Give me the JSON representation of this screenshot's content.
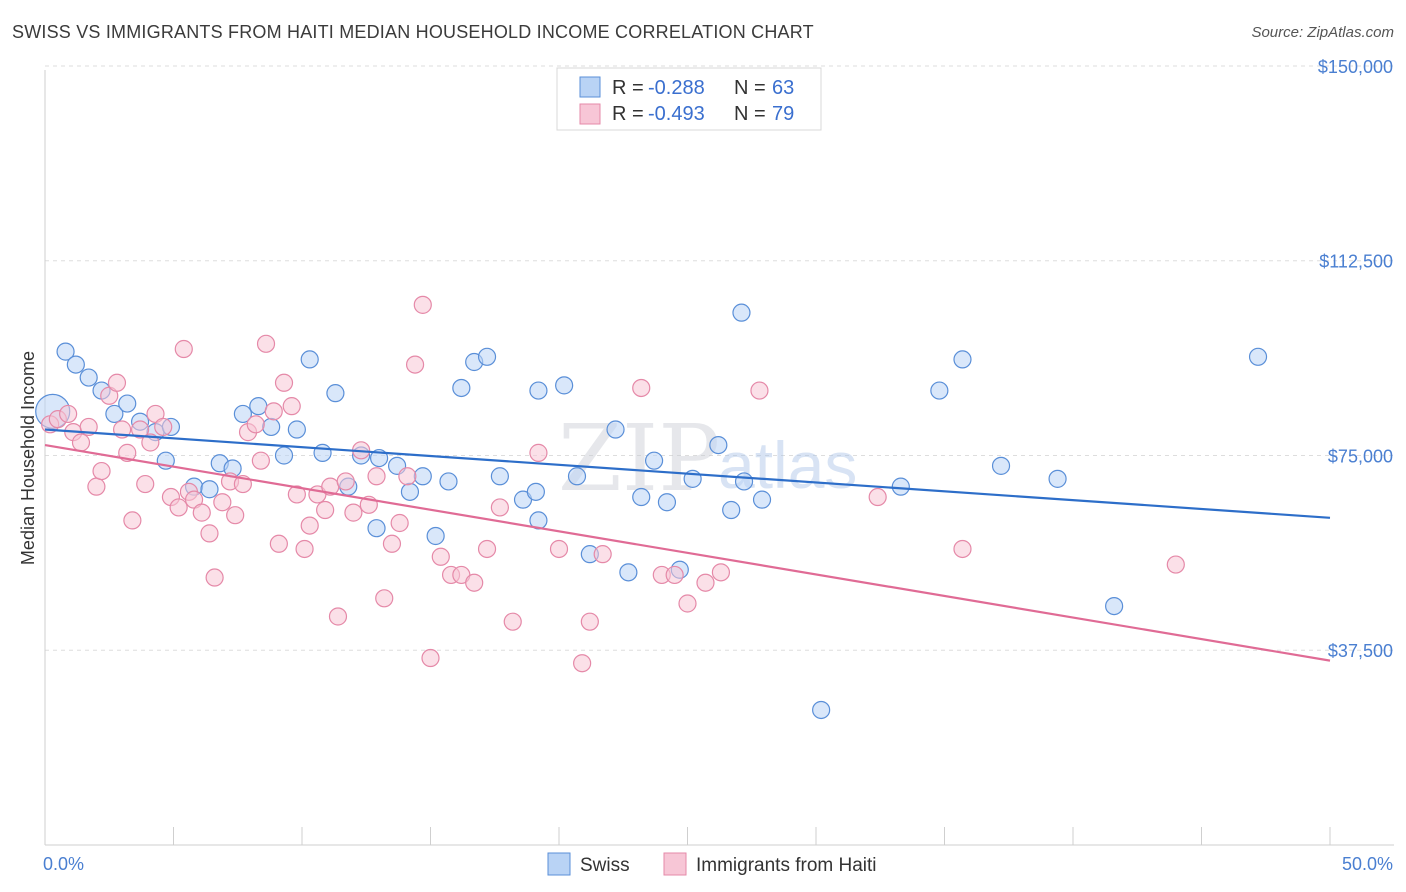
{
  "title": "SWISS VS IMMIGRANTS FROM HAITI MEDIAN HOUSEHOLD INCOME CORRELATION CHART",
  "source": "Source: ZipAtlas.com",
  "watermark": {
    "zip": "ZIP",
    "atlas": "atlas"
  },
  "colors": {
    "swiss_fill": "#b9d3f5",
    "swiss_stroke": "#5a8fd8",
    "swiss_line": "#2d6ec9",
    "haiti_fill": "#f7c6d6",
    "haiti_stroke": "#e589a8",
    "haiti_line": "#e06b95",
    "grid": "#dddddd",
    "axis_text": "#4a7fd1"
  },
  "legend": {
    "rows": [
      {
        "r_label": "R =",
        "r_value": "-0.288",
        "n_label": "N =",
        "n_value": "63"
      },
      {
        "r_label": "R =",
        "r_value": "-0.493",
        "n_label": "N =",
        "n_value": "79"
      }
    ]
  },
  "bottom_legend": {
    "swiss": "Swiss",
    "haiti": "Immigrants from Haiti"
  },
  "chart_data": {
    "type": "scatter",
    "xlabel": "",
    "ylabel": "Median Household Income",
    "xlim": [
      0,
      50
    ],
    "ylim": [
      0,
      155000
    ],
    "x_tick_labels": [
      "0.0%",
      "50.0%"
    ],
    "y_ticks": [
      37500,
      75000,
      112500,
      150000
    ],
    "y_tick_labels": [
      "$37,500",
      "$75,000",
      "$112,500",
      "$150,000"
    ],
    "grid": "horizontal dashed",
    "series": [
      {
        "name": "Swiss",
        "trend": {
          "x": [
            0,
            50
          ],
          "y": [
            80000,
            63000
          ]
        },
        "points": [
          [
            0.3,
            83500
          ],
          [
            0.8,
            95000
          ],
          [
            1.2,
            92500
          ],
          [
            1.7,
            90000
          ],
          [
            2.2,
            87500
          ],
          [
            2.7,
            83000
          ],
          [
            3.2,
            85000
          ],
          [
            3.7,
            81500
          ],
          [
            4.3,
            79500
          ],
          [
            4.9,
            80500
          ],
          [
            4.7,
            74000
          ],
          [
            5.8,
            69000
          ],
          [
            6.4,
            68500
          ],
          [
            6.8,
            73500
          ],
          [
            7.3,
            72500
          ],
          [
            7.7,
            83000
          ],
          [
            8.3,
            84500
          ],
          [
            8.8,
            80500
          ],
          [
            9.3,
            75000
          ],
          [
            9.8,
            80000
          ],
          [
            10.3,
            93500
          ],
          [
            10.8,
            75500
          ],
          [
            11.3,
            87000
          ],
          [
            11.8,
            69000
          ],
          [
            12.3,
            75000
          ],
          [
            12.9,
            61000
          ],
          [
            13.0,
            74500
          ],
          [
            13.7,
            73000
          ],
          [
            14.2,
            68000
          ],
          [
            14.7,
            71000
          ],
          [
            15.2,
            59500
          ],
          [
            15.7,
            70000
          ],
          [
            16.2,
            88000
          ],
          [
            16.7,
            93000
          ],
          [
            17.2,
            94000
          ],
          [
            17.7,
            71000
          ],
          [
            18.6,
            66500
          ],
          [
            19.1,
            68000
          ],
          [
            19.2,
            87500
          ],
          [
            19.2,
            62500
          ],
          [
            20.2,
            88500
          ],
          [
            20.7,
            71000
          ],
          [
            21.2,
            56000
          ],
          [
            22.2,
            80000
          ],
          [
            22.7,
            52500
          ],
          [
            23.2,
            67000
          ],
          [
            23.7,
            74000
          ],
          [
            24.2,
            66000
          ],
          [
            24.7,
            53000
          ],
          [
            25.2,
            70500
          ],
          [
            26.2,
            77000
          ],
          [
            26.7,
            64500
          ],
          [
            27.1,
            102500
          ],
          [
            27.2,
            70000
          ],
          [
            27.9,
            66500
          ],
          [
            30.2,
            26000
          ],
          [
            33.3,
            69000
          ],
          [
            34.8,
            87500
          ],
          [
            35.7,
            93500
          ],
          [
            37.2,
            73000
          ],
          [
            39.4,
            70500
          ],
          [
            41.6,
            46000
          ],
          [
            47.2,
            94000
          ]
        ]
      },
      {
        "name": "Immigrants from Haiti",
        "trend": {
          "x": [
            0,
            50
          ],
          "y": [
            77000,
            35500
          ]
        },
        "points": [
          [
            0.2,
            81000
          ],
          [
            0.5,
            82000
          ],
          [
            0.9,
            83000
          ],
          [
            1.1,
            79500
          ],
          [
            1.4,
            77500
          ],
          [
            1.7,
            80500
          ],
          [
            2.0,
            69000
          ],
          [
            2.2,
            72000
          ],
          [
            2.5,
            86500
          ],
          [
            2.8,
            89000
          ],
          [
            3.0,
            80000
          ],
          [
            3.2,
            75500
          ],
          [
            3.4,
            62500
          ],
          [
            3.7,
            80000
          ],
          [
            3.9,
            69500
          ],
          [
            4.1,
            77500
          ],
          [
            4.3,
            83000
          ],
          [
            4.6,
            80500
          ],
          [
            4.9,
            67000
          ],
          [
            5.2,
            65000
          ],
          [
            5.4,
            95500
          ],
          [
            5.6,
            68000
          ],
          [
            5.8,
            66500
          ],
          [
            6.1,
            64000
          ],
          [
            6.4,
            60000
          ],
          [
            6.6,
            51500
          ],
          [
            6.9,
            66000
          ],
          [
            7.2,
            70000
          ],
          [
            7.4,
            63500
          ],
          [
            7.7,
            69500
          ],
          [
            7.9,
            79500
          ],
          [
            8.2,
            81000
          ],
          [
            8.4,
            74000
          ],
          [
            8.6,
            96500
          ],
          [
            8.9,
            83500
          ],
          [
            9.1,
            58000
          ],
          [
            9.3,
            89000
          ],
          [
            9.6,
            84500
          ],
          [
            9.8,
            67500
          ],
          [
            10.1,
            57000
          ],
          [
            10.3,
            61500
          ],
          [
            10.6,
            67500
          ],
          [
            10.9,
            64500
          ],
          [
            11.1,
            69000
          ],
          [
            11.4,
            44000
          ],
          [
            11.7,
            70000
          ],
          [
            12.0,
            64000
          ],
          [
            12.3,
            76000
          ],
          [
            12.6,
            65500
          ],
          [
            12.9,
            71000
          ],
          [
            13.2,
            47500
          ],
          [
            13.5,
            58000
          ],
          [
            13.8,
            62000
          ],
          [
            14.1,
            71000
          ],
          [
            14.4,
            92500
          ],
          [
            14.7,
            104000
          ],
          [
            15.0,
            36000
          ],
          [
            15.4,
            55500
          ],
          [
            15.8,
            52000
          ],
          [
            16.2,
            52000
          ],
          [
            16.7,
            50500
          ],
          [
            17.2,
            57000
          ],
          [
            17.7,
            65000
          ],
          [
            18.2,
            43000
          ],
          [
            19.2,
            75500
          ],
          [
            20.0,
            57000
          ],
          [
            20.9,
            35000
          ],
          [
            21.2,
            43000
          ],
          [
            21.7,
            56000
          ],
          [
            23.2,
            88000
          ],
          [
            24.0,
            52000
          ],
          [
            24.5,
            52000
          ],
          [
            25.0,
            46500
          ],
          [
            25.7,
            50500
          ],
          [
            26.3,
            52500
          ],
          [
            27.8,
            87500
          ],
          [
            32.4,
            67000
          ],
          [
            35.7,
            57000
          ],
          [
            44.0,
            54000
          ]
        ]
      }
    ]
  }
}
